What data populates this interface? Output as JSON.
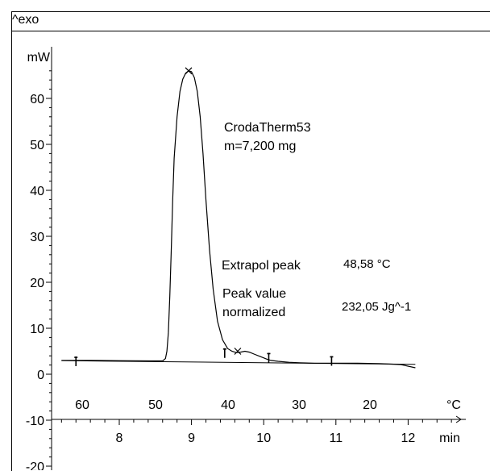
{
  "header": {
    "label": "^exo"
  },
  "chart_data": {
    "type": "line",
    "title": "",
    "y_unit": "mW",
    "y_ticks": [
      -20,
      -10,
      0,
      10,
      20,
      30,
      40,
      50,
      60
    ],
    "temp_unit": "°C",
    "temp_ticks": [
      60,
      50,
      40,
      30,
      20
    ],
    "time_unit": "min",
    "time_ticks": [
      8,
      9,
      10,
      11,
      12
    ],
    "ylim": [
      -20,
      67
    ],
    "xlim_min": [
      7.2,
      12.7
    ],
    "series": [
      {
        "values_min": [
          7.2,
          7.6,
          8.0,
          8.4,
          8.6,
          8.64,
          8.66,
          8.68,
          8.7,
          8.72,
          8.74,
          8.76,
          8.8,
          8.84,
          8.88,
          8.92,
          8.96,
          9.0,
          9.04,
          9.08,
          9.12,
          9.16,
          9.2,
          9.25,
          9.3,
          9.36,
          9.43,
          9.5,
          9.56,
          9.62,
          9.68,
          9.74,
          9.8,
          9.88,
          9.96,
          10.04,
          10.1,
          10.2,
          10.35,
          10.5,
          10.7,
          10.9,
          11.1,
          11.3,
          11.6,
          11.9,
          12.1
        ],
        "values_mw": [
          3.0,
          3.0,
          2.95,
          2.9,
          2.9,
          3.4,
          5.0,
          9.0,
          17.0,
          27.0,
          38.0,
          47.0,
          56.0,
          61.5,
          64.2,
          65.5,
          66.0,
          65.8,
          64.5,
          61.5,
          56.0,
          48.0,
          38.0,
          27.0,
          18.5,
          11.5,
          7.5,
          5.6,
          5.0,
          4.7,
          4.8,
          5.0,
          4.8,
          4.3,
          3.8,
          3.3,
          3.0,
          2.8,
          2.6,
          2.5,
          2.4,
          2.4,
          2.4,
          2.4,
          2.3,
          2.1,
          1.4
        ]
      }
    ],
    "baseline_min": [
      7.2,
      12.1
    ],
    "baseline_mw": [
      2.95,
      2.15
    ],
    "markers": [
      {
        "t": 7.4,
        "mw": 2.8,
        "symbol": "tick"
      },
      {
        "t": 9.46,
        "mw": 4.6,
        "symbol": "tick"
      },
      {
        "t": 10.07,
        "mw": 3.6,
        "symbol": "tick"
      },
      {
        "t": 10.94,
        "mw": 2.9,
        "symbol": "tick"
      },
      {
        "t": 8.96,
        "mw": 66.0,
        "symbol": "x"
      },
      {
        "t": 9.64,
        "mw": 5.0,
        "symbol": "x"
      }
    ],
    "annotations": {
      "sample_name": "CrodaTherm53",
      "sample_mass": "m=7,200 mg",
      "extrapol_label": "Extrapol peak",
      "extrapol_value": "48,58 °C",
      "peak_label_1": "Peak value",
      "peak_label_2": "normalized",
      "peak_value": "232,05 Jg^-1"
    }
  }
}
